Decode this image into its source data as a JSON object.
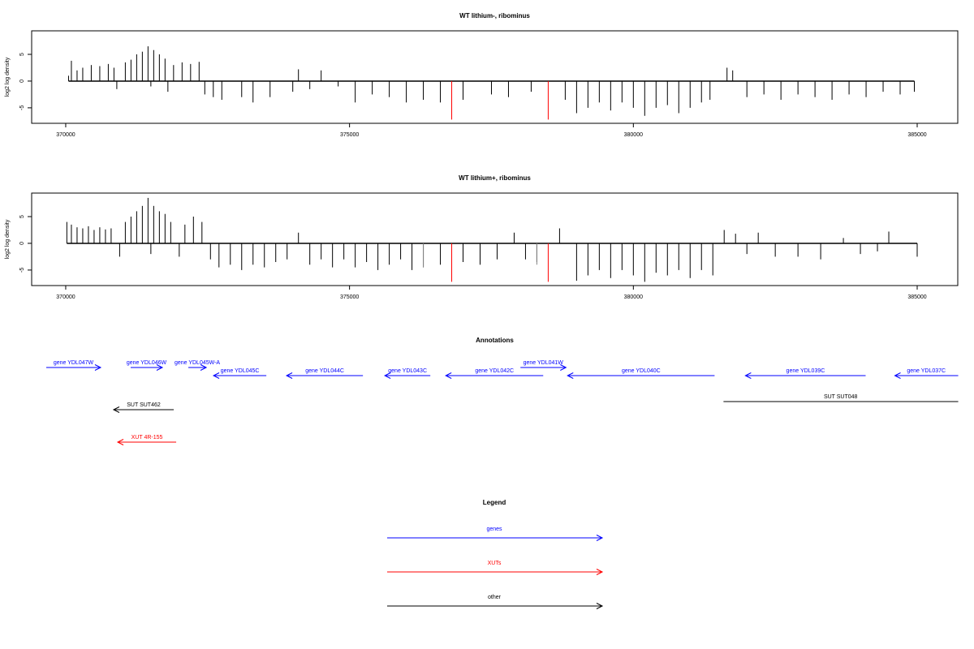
{
  "chart_data": [
    {
      "type": "spike",
      "title": "WT lithium-, ribominus",
      "y_label": "log2 log density",
      "xlim": [
        369400,
        385715
      ],
      "xticks": [
        370000,
        375000,
        380000,
        385000
      ],
      "ylim": [
        -7.9,
        9.4
      ],
      "yticks": [
        -5,
        0,
        5
      ],
      "series": [
        {
          "color": "#000000",
          "x": [
            370050,
            370100,
            370200,
            370300,
            370450,
            370600,
            370750,
            370850,
            370900,
            371050,
            371150,
            371250,
            371350,
            371450,
            371500,
            371550,
            371650,
            371750,
            371800,
            371900,
            372050,
            372200,
            372350,
            372450,
            372600,
            372750,
            373100,
            373300,
            373600,
            374000,
            374100,
            374300,
            374500,
            374800,
            375100,
            375400,
            375700,
            376000,
            376300,
            376600,
            377000,
            377500,
            377800,
            378200,
            378800,
            379000,
            379200,
            379400,
            379600,
            379800,
            380000,
            380200,
            380400,
            380600,
            380800,
            381000,
            381200,
            381350,
            381650,
            381750,
            382000,
            382300,
            382600,
            382900,
            383200,
            383500,
            383800,
            384100,
            384400,
            384700,
            384950
          ],
          "values": [
            1,
            3.8,
            2,
            2.5,
            3,
            2.8,
            3.2,
            2.5,
            -1.5,
            3.5,
            4,
            5,
            5.5,
            6.5,
            -1,
            5.8,
            5,
            4.2,
            -2,
            3,
            3.5,
            3.2,
            3.6,
            -2.5,
            -3,
            -3.5,
            -3,
            -4,
            -3,
            -2,
            2.2,
            -1.5,
            2,
            -1,
            -4,
            -2.5,
            -3,
            -4,
            -3.5,
            -4,
            -3.5,
            -2.5,
            -3,
            -2,
            -3.5,
            -6,
            -5,
            -4,
            -5.5,
            -4,
            -5,
            -6.5,
            -5,
            -4.5,
            -6,
            -5,
            -4,
            -3.5,
            2.5,
            2,
            -3,
            -2.5,
            -3.5,
            -2.5,
            -3,
            -3.5,
            -2.5,
            -3,
            -2,
            -2.5,
            -2
          ]
        },
        {
          "color": "#ff0000",
          "x": [
            376800,
            378500
          ],
          "values": [
            -7.2,
            -7.2
          ]
        }
      ]
    },
    {
      "type": "spike",
      "title": "WT lithium+, ribominus",
      "y_label": "log2 log density",
      "xlim": [
        369400,
        385715
      ],
      "xticks": [
        370000,
        375000,
        380000,
        385000
      ],
      "ylim": [
        -7.9,
        9.4
      ],
      "yticks": [
        -5,
        0,
        5
      ],
      "series": [
        {
          "color": "#000000",
          "x": [
            370020,
            370100,
            370200,
            370300,
            370400,
            370500,
            370600,
            370700,
            370800,
            370950,
            371050,
            371150,
            371250,
            371350,
            371450,
            371500,
            371550,
            371650,
            371750,
            371850,
            372000,
            372100,
            372250,
            372400,
            372550,
            372700,
            372900,
            373100,
            373300,
            373500,
            373700,
            373900,
            374100,
            374300,
            374500,
            374700,
            374900,
            375100,
            375300,
            375500,
            375700,
            375900,
            376100,
            376300,
            376600,
            377000,
            377300,
            377600,
            377900,
            378100,
            378300,
            378700,
            379000,
            379200,
            379400,
            379600,
            379800,
            380000,
            380200,
            380400,
            380600,
            380800,
            381000,
            381200,
            381400,
            381600,
            381800,
            382000,
            382200,
            382500,
            382900,
            383300,
            383700,
            384000,
            384300,
            384500,
            385000
          ],
          "values": [
            4,
            3.5,
            3,
            2.8,
            3.2,
            2.5,
            3,
            2.6,
            2.8,
            -2.5,
            4,
            5,
            6,
            7,
            8.5,
            -2,
            7,
            6,
            5.5,
            4,
            -2.5,
            3.5,
            5,
            4,
            -3,
            -4.5,
            -4,
            -5,
            -4,
            -4.5,
            -3.5,
            -3,
            2,
            -4,
            -3,
            -4.5,
            -3,
            -4.5,
            -3.5,
            -5,
            -4,
            -3,
            -5,
            -4.5,
            -4,
            -3.5,
            -4,
            -3,
            2,
            -3,
            -3.5,
            2.8,
            -7,
            -6,
            -5,
            -6.5,
            -5,
            -6,
            -7.2,
            -5.5,
            -6,
            -5,
            -6.5,
            -5,
            -6,
            2.5,
            1.8,
            -2,
            2,
            -2.5,
            -2.5,
            -3,
            1,
            -2,
            -1.5,
            2.2,
            -2.5
          ]
        },
        {
          "color": "#888888",
          "x": [
            376300,
            378300
          ],
          "values": [
            -4.5,
            -4
          ]
        },
        {
          "color": "#ff0000",
          "x": [
            376800,
            378500
          ],
          "values": [
            -7.2,
            -7.2
          ]
        }
      ]
    },
    {
      "type": "annotation",
      "title": "Annotations",
      "xlim": [
        369400,
        385715
      ],
      "features": [
        {
          "label": "gene YDL047W",
          "start": 369657,
          "end": 370615,
          "strand": "+",
          "color": "#0000ff"
        },
        {
          "label": "gene YDL046W",
          "start": 371144,
          "end": 371702,
          "strand": "+",
          "color": "#0000ff"
        },
        {
          "label": "gene YDL045W-A",
          "start": 372160,
          "end": 372475,
          "strand": "+",
          "color": "#0000ff"
        },
        {
          "label": "gene YDL045C",
          "start": 372604,
          "end": 373534,
          "strand": "-",
          "color": "#0000ff"
        },
        {
          "label": "gene YDL044C",
          "start": 373891,
          "end": 375236,
          "strand": "-",
          "color": "#0000ff"
        },
        {
          "label": "gene YDL043C",
          "start": 375622,
          "end": 376423,
          "strand": "-",
          "color": "#0000ff"
        },
        {
          "label": "gene YDL042C",
          "start": 376695,
          "end": 378412,
          "strand": "-",
          "color": "#0000ff"
        },
        {
          "label": "gene YDL041W",
          "start": 378011,
          "end": 378813,
          "strand": "+",
          "color": "#0000ff"
        },
        {
          "label": "gene YDL040C",
          "start": 378841,
          "end": 381431,
          "strand": "-",
          "color": "#0000ff"
        },
        {
          "label": "gene YDL039C",
          "start": 381974,
          "end": 384092,
          "strand": "-",
          "color": "#0000ff"
        },
        {
          "label": "gene YDL037C",
          "start": 384607,
          "end": 385723,
          "strand": "-",
          "color": "#0000ff"
        },
        {
          "label": "SUT SUT462",
          "start": 370844,
          "end": 371903,
          "strand": "-",
          "color": "#000000"
        },
        {
          "label": "SUT SUT048",
          "start": 381588,
          "end": 385723,
          "strand": ".",
          "color": "#000000"
        },
        {
          "label": "XUT 4R-155",
          "start": 370916,
          "end": 371946,
          "strand": "-",
          "color": "#ff0000"
        }
      ]
    },
    {
      "type": "legend",
      "title": "Legend",
      "entries": [
        {
          "label": "genes",
          "color": "#0000ff"
        },
        {
          "label": "XUTs",
          "color": "#ff0000"
        },
        {
          "label": "other",
          "color": "#000000"
        }
      ]
    }
  ]
}
